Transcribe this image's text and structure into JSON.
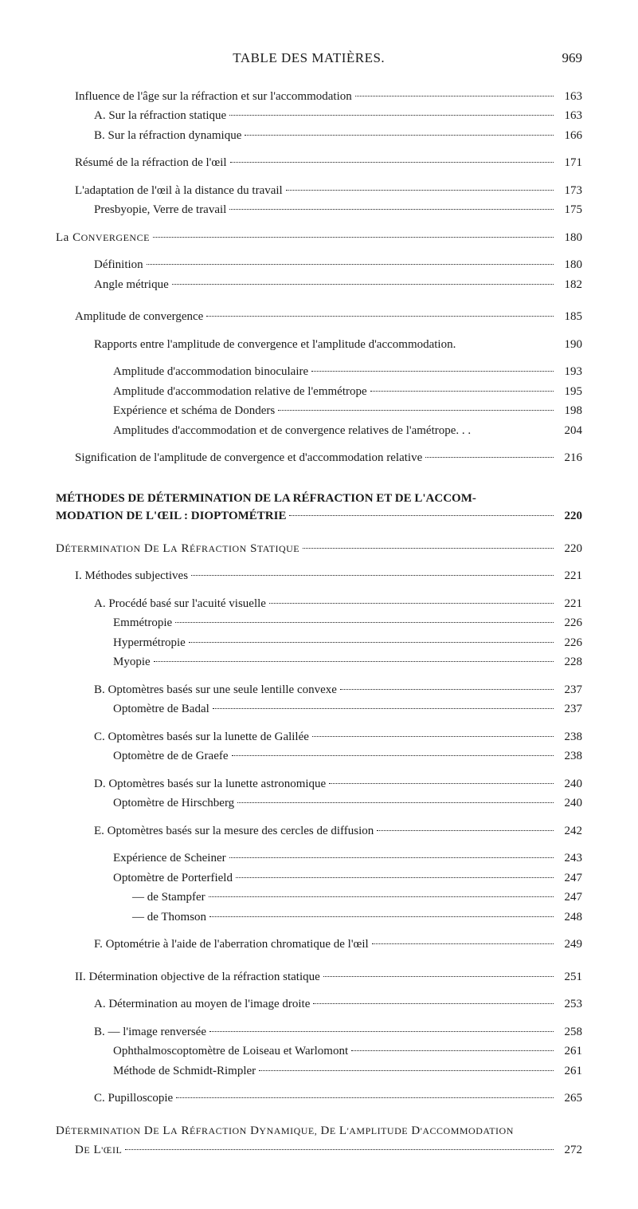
{
  "header": {
    "title": "TABLE DES MATIÈRES.",
    "page": "969"
  },
  "lines": [
    {
      "text": "Influence de l'âge sur la réfraction et sur l'accommodation",
      "page": "163",
      "indent": 1,
      "gap": ""
    },
    {
      "text": "A. Sur la réfraction statique",
      "page": "163",
      "indent": 2,
      "gap": ""
    },
    {
      "text": "B. Sur la réfraction dynamique",
      "page": "166",
      "indent": 2,
      "gap": ""
    },
    {
      "text": "Résumé de la réfraction de l'œil",
      "page": "171",
      "indent": 1,
      "gap": "sm"
    },
    {
      "text": "L'adaptation de l'œil à la distance du travail",
      "page": "173",
      "indent": 1,
      "gap": "sm"
    },
    {
      "text": "Presbyopie, Verre de travail",
      "page": "175",
      "indent": 2,
      "gap": ""
    },
    {
      "text": "La convergence",
      "page": "180",
      "indent": 0,
      "gap": "sm",
      "smallcaps": true,
      "leadSmall": "La ",
      "restSmall": "CONVERGENCE"
    },
    {
      "text": "Définition",
      "page": "180",
      "indent": 2,
      "gap": "sm"
    },
    {
      "text": "Angle métrique",
      "page": "182",
      "indent": 2,
      "gap": ""
    },
    {
      "text": "Amplitude de convergence",
      "page": "185",
      "indent": 1,
      "gap": "md"
    },
    {
      "text": "Rapports entre l'amplitude de convergence et l'amplitude d'accommodation.",
      "page": "190",
      "indent": 2,
      "gap": "sm",
      "nodots": true
    },
    {
      "text": "Amplitude d'accommodation binoculaire",
      "page": "193",
      "indent": 3,
      "gap": "sm"
    },
    {
      "text": "Amplitude d'accommodation relative de l'emmétrope",
      "page": "195",
      "indent": 3,
      "gap": ""
    },
    {
      "text": "Expérience et schéma de Donders",
      "page": "198",
      "indent": 3,
      "gap": ""
    },
    {
      "text": "Amplitudes d'accommodation et de convergence relatives de l'amétrope. . .",
      "page": "204",
      "indent": 3,
      "gap": "",
      "nodots": true
    },
    {
      "text": "Signification de l'amplitude de convergence et d'accommodation relative",
      "page": "216",
      "indent": 1,
      "gap": "sm"
    }
  ],
  "section2": {
    "heading1": "MÉTHODES DE DÉTERMINATION DE LA RÉFRACTION ET DE L'ACCOM-",
    "heading2": "MODATION DE L'ŒIL : DIOPTOMÉTRIE",
    "heading2_page": "220"
  },
  "lines2": [
    {
      "text": "Détermination de la réfraction statique",
      "page": "220",
      "indent": 0,
      "gap": "md",
      "smallcaps": true,
      "leadSmall": "",
      "restSmall": "DÉTERMINATION DE LA RÉFRACTION STATIQUE"
    },
    {
      "text": "I. Méthodes subjectives",
      "page": "221",
      "indent": 1,
      "gap": "sm"
    },
    {
      "text": "A. Procédé basé sur l'acuité visuelle",
      "page": "221",
      "indent": 2,
      "gap": "sm"
    },
    {
      "text": "Emmétropie",
      "page": "226",
      "indent": 3,
      "gap": ""
    },
    {
      "text": "Hypermétropie",
      "page": "226",
      "indent": 3,
      "gap": ""
    },
    {
      "text": "Myopie",
      "page": "228",
      "indent": 3,
      "gap": ""
    },
    {
      "text": "B. Optomètres basés sur une seule lentille convexe",
      "page": "237",
      "indent": 2,
      "gap": "sm"
    },
    {
      "text": "Optomètre de Badal",
      "page": "237",
      "indent": 3,
      "gap": ""
    },
    {
      "text": "C. Optomètres basés sur la lunette de Galilée",
      "page": "238",
      "indent": 2,
      "gap": "sm"
    },
    {
      "text": "Optomètre de de Graefe",
      "page": "238",
      "indent": 3,
      "gap": ""
    },
    {
      "text": "D. Optomètres basés sur la lunette astronomique",
      "page": "240",
      "indent": 2,
      "gap": "sm"
    },
    {
      "text": "Optomètre de Hirschberg",
      "page": "240",
      "indent": 3,
      "gap": ""
    },
    {
      "text": "E. Optomètres basés sur la mesure des cercles de diffusion",
      "page": "242",
      "indent": 2,
      "gap": "sm"
    },
    {
      "text": "Expérience de Scheiner",
      "page": "243",
      "indent": 3,
      "gap": "sm"
    },
    {
      "text": "Optomètre de Porterfield",
      "page": "247",
      "indent": 3,
      "gap": ""
    },
    {
      "text": "—      de Stampfer",
      "page": "247",
      "indent": 4,
      "gap": ""
    },
    {
      "text": "—      de Thomson",
      "page": "248",
      "indent": 4,
      "gap": ""
    },
    {
      "text": "F. Optométrie à l'aide de l'aberration chromatique de l'œil",
      "page": "249",
      "indent": 2,
      "gap": "sm"
    },
    {
      "text": "II. Détermination objective de la réfraction statique",
      "page": "251",
      "indent": 1,
      "gap": "md"
    },
    {
      "text": "A. Détermination au moyen de l'image droite",
      "page": "253",
      "indent": 2,
      "gap": "sm"
    },
    {
      "text": "B.                  —                    l'image renversée",
      "page": "258",
      "indent": 2,
      "gap": "sm"
    },
    {
      "text": "Ophthalmoscoptomètre de Loiseau et Warlomont",
      "page": "261",
      "indent": 3,
      "gap": ""
    },
    {
      "text": "Méthode de Schmidt-Rimpler",
      "page": "261",
      "indent": 3,
      "gap": ""
    },
    {
      "text": "C. Pupilloscopie",
      "page": "265",
      "indent": 2,
      "gap": "sm"
    },
    {
      "text": "Détermination de la réfraction dynamique, de l'amplitude d'accommodation",
      "page": "",
      "indent": 0,
      "gap": "md",
      "smallcaps": true,
      "nodots": true,
      "nopage": true,
      "restSmall": "DÉTERMINATION DE LA RÉFRACTION DYNAMIQUE, DE L'AMPLITUDE D'ACCOMMODATION"
    },
    {
      "text": "de l'œil",
      "page": "272",
      "indent": 1,
      "gap": "",
      "smallcaps": true,
      "restSmall": "DE L'ŒIL"
    }
  ]
}
